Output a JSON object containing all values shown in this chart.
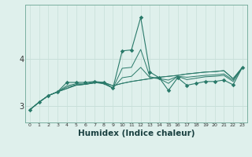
{
  "xlabel": "Humidex (Indice chaleur)",
  "x": [
    0,
    1,
    2,
    3,
    4,
    5,
    6,
    7,
    8,
    9,
    10,
    11,
    12,
    13,
    14,
    15,
    16,
    17,
    18,
    19,
    20,
    21,
    22,
    23
  ],
  "line_straight": [
    2.92,
    3.08,
    3.22,
    3.3,
    3.37,
    3.44,
    3.46,
    3.49,
    3.5,
    3.43,
    3.48,
    3.52,
    3.55,
    3.58,
    3.61,
    3.63,
    3.65,
    3.68,
    3.7,
    3.72,
    3.73,
    3.75,
    3.58,
    3.82
  ],
  "line_upper": [
    2.92,
    3.08,
    3.22,
    3.3,
    3.5,
    3.5,
    3.5,
    3.52,
    3.5,
    3.38,
    4.17,
    4.19,
    4.88,
    3.72,
    3.6,
    3.33,
    3.6,
    3.44,
    3.48,
    3.52,
    3.52,
    3.55,
    3.45,
    3.82
  ],
  "line_mid1": [
    2.92,
    3.08,
    3.22,
    3.3,
    3.43,
    3.47,
    3.47,
    3.51,
    3.48,
    3.38,
    3.8,
    3.82,
    4.2,
    3.62,
    3.58,
    3.48,
    3.63,
    3.56,
    3.59,
    3.62,
    3.63,
    3.65,
    3.52,
    3.82
  ],
  "line_mid2": [
    2.92,
    3.08,
    3.22,
    3.3,
    3.4,
    3.45,
    3.46,
    3.5,
    3.47,
    3.38,
    3.6,
    3.63,
    3.82,
    3.6,
    3.58,
    3.55,
    3.63,
    3.61,
    3.63,
    3.65,
    3.66,
    3.68,
    3.55,
    3.82
  ],
  "line_low": [
    2.92,
    3.08,
    3.22,
    3.3,
    3.37,
    3.44,
    3.46,
    3.49,
    3.5,
    3.43,
    3.48,
    3.52,
    3.55,
    3.58,
    3.61,
    3.63,
    3.65,
    3.68,
    3.7,
    3.72,
    3.73,
    3.75,
    3.58,
    3.82
  ],
  "bg_color": "#dff0ec",
  "line_color": "#2a7a6a",
  "grid_color_v": "#c8dfd9",
  "grid_color_h": "#c8dfd9",
  "yticks": [
    3,
    4
  ],
  "ylim": [
    2.65,
    5.15
  ],
  "xlim": [
    0,
    23
  ]
}
